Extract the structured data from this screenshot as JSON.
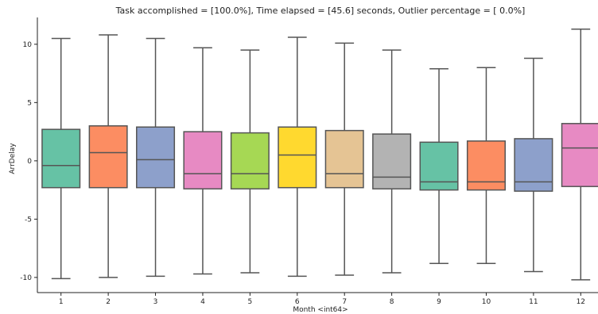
{
  "chart_data": {
    "type": "box",
    "title": "Task accomplished = [100.0%],     Time elapsed = [45.6] seconds,     Outlier percentage = [  0.0%]",
    "xlabel": "Month <int64>",
    "ylabel": "ArrDelay",
    "categories": [
      "1",
      "2",
      "3",
      "4",
      "5",
      "6",
      "7",
      "8",
      "9",
      "10",
      "11",
      "12"
    ],
    "y_ticks": [
      -10,
      -5,
      0,
      5,
      10
    ],
    "ylim": [
      -11.3,
      12.3
    ],
    "grid": false,
    "boxes": [
      {
        "category": "1",
        "whisker_low": -10.1,
        "q1": -2.3,
        "median": -0.4,
        "q3": 2.7,
        "whisker_high": 10.5,
        "color": "#66c2a5"
      },
      {
        "category": "2",
        "whisker_low": -10.0,
        "q1": -2.3,
        "median": 0.7,
        "q3": 3.0,
        "whisker_high": 10.8,
        "color": "#fc8d62"
      },
      {
        "category": "3",
        "whisker_low": -9.9,
        "q1": -2.3,
        "median": 0.1,
        "q3": 2.9,
        "whisker_high": 10.5,
        "color": "#8da0cb"
      },
      {
        "category": "4",
        "whisker_low": -9.7,
        "q1": -2.4,
        "median": -1.1,
        "q3": 2.5,
        "whisker_high": 9.7,
        "color": "#e78ac3"
      },
      {
        "category": "5",
        "whisker_low": -9.6,
        "q1": -2.4,
        "median": -1.1,
        "q3": 2.4,
        "whisker_high": 9.5,
        "color": "#a6d854"
      },
      {
        "category": "6",
        "whisker_low": -9.9,
        "q1": -2.3,
        "median": 0.5,
        "q3": 2.9,
        "whisker_high": 10.6,
        "color": "#ffd92f"
      },
      {
        "category": "7",
        "whisker_low": -9.8,
        "q1": -2.3,
        "median": -1.1,
        "q3": 2.6,
        "whisker_high": 10.1,
        "color": "#e5c494"
      },
      {
        "category": "8",
        "whisker_low": -9.6,
        "q1": -2.4,
        "median": -1.4,
        "q3": 2.3,
        "whisker_high": 9.5,
        "color": "#b3b3b3"
      },
      {
        "category": "9",
        "whisker_low": -8.8,
        "q1": -2.5,
        "median": -1.8,
        "q3": 1.6,
        "whisker_high": 7.9,
        "color": "#66c2a5"
      },
      {
        "category": "10",
        "whisker_low": -8.8,
        "q1": -2.5,
        "median": -1.8,
        "q3": 1.7,
        "whisker_high": 8.0,
        "color": "#fc8d62"
      },
      {
        "category": "11",
        "whisker_low": -9.5,
        "q1": -2.6,
        "median": -1.8,
        "q3": 1.9,
        "whisker_high": 8.8,
        "color": "#8da0cb"
      },
      {
        "category": "12",
        "whisker_low": -10.2,
        "q1": -2.2,
        "median": 1.1,
        "q3": 3.2,
        "whisker_high": 11.3,
        "color": "#e78ac3"
      }
    ],
    "line_color": "#555555"
  }
}
